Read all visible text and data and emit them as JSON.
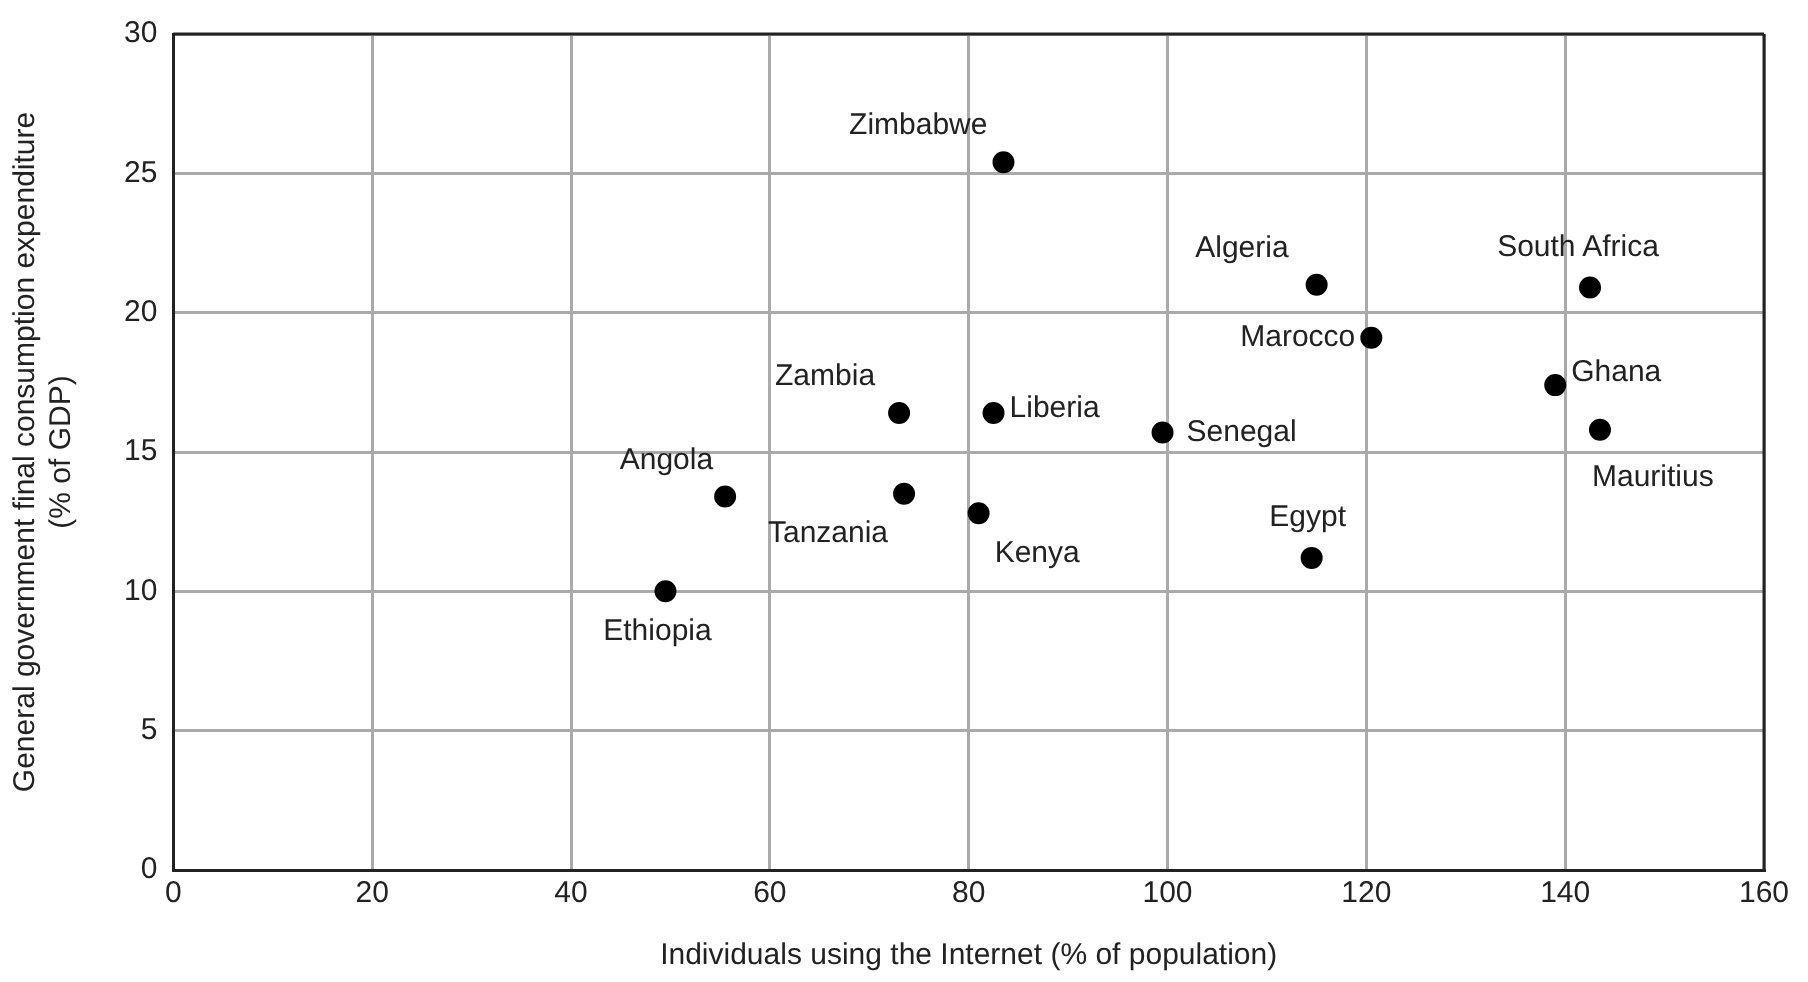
{
  "chart_data": {
    "type": "scatter",
    "xlabel": "Individuals using the Internet (% of population)",
    "ylabel": "General government final consumption expenditure\n(% of GDP)",
    "x": [
      83.5,
      115,
      142.5,
      120.5,
      139,
      143.5,
      99.5,
      82.5,
      73,
      55.5,
      73.5,
      81,
      114.5,
      49.5
    ],
    "series": [
      {
        "color": "#000000",
        "values": [
          25.4,
          21,
          20.9,
          19.1,
          17.4,
          15.8,
          15.7,
          16.4,
          16.4,
          13.4,
          13.5,
          12.8,
          11.2,
          10
        ]
      }
    ],
    "annotations": [
      {
        "text": "Zimbabwe",
        "x": 83.5,
        "y": 25.4
      },
      {
        "text": "Algeria",
        "x": 115,
        "y": 21
      },
      {
        "text": "South Africa",
        "x": 142.5,
        "y": 20.9
      },
      {
        "text": "Marocco",
        "x": 120.5,
        "y": 19.1
      },
      {
        "text": "Ghana",
        "x": 139,
        "y": 17.4
      },
      {
        "text": "Mauritius",
        "x": 143.5,
        "y": 15.8
      },
      {
        "text": "Senegal",
        "x": 99.5,
        "y": 15.7
      },
      {
        "text": "Liberia",
        "x": 82.5,
        "y": 16.4
      },
      {
        "text": "Zambia",
        "x": 73,
        "y": 16.4
      },
      {
        "text": "Angola",
        "x": 55.5,
        "y": 13.4
      },
      {
        "text": "Tanzania",
        "x": 73.5,
        "y": 13.5
      },
      {
        "text": "Kenya",
        "x": 81,
        "y": 12.8
      },
      {
        "text": "Egypt",
        "x": 114.5,
        "y": 11.2
      },
      {
        "text": "Ethiopia",
        "x": 49.5,
        "y": 10
      }
    ],
    "xlim": [
      0,
      160
    ],
    "xticks": [
      0,
      20,
      40,
      60,
      80,
      100,
      120,
      140,
      160
    ],
    "ylim": [
      0,
      30
    ],
    "yticks": [
      0,
      5,
      10,
      15,
      20,
      25,
      30
    ],
    "grid": true,
    "legend": false,
    "marker": "circle"
  }
}
